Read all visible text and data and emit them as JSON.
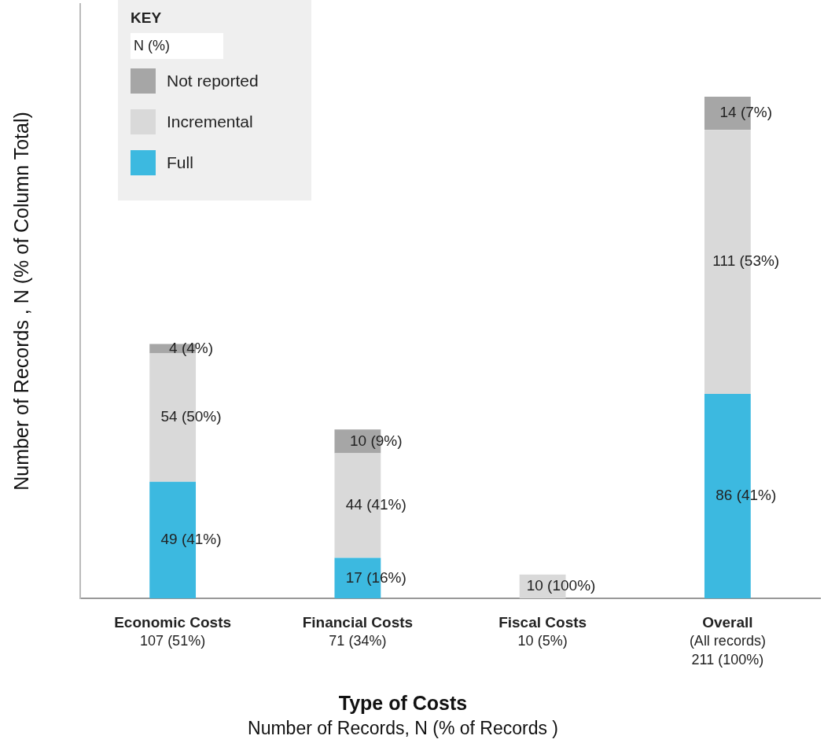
{
  "chart_data": {
    "type": "bar",
    "stacked": true,
    "xlabel": "Type of Costs\nNumber of Records, N (% of Records )",
    "ylabel": "Number of Records , N (% of Column Total)",
    "legend_title": "KEY",
    "legend": "top left",
    "grid": false,
    "tick_labels": "x",
    "annotations": [
      "N (%)"
    ],
    "categories": [
      "Economic Costs\n107 (51%)",
      "Financial Costs\n71 (34%)",
      "Fiscal Costs\n10 (5%)",
      "Overall\n(All records)\n211 (100%)"
    ],
    "series": [
      {
        "name": "Full",
        "color": "#3cb9e0",
        "values": [
          49,
          17,
          null,
          86
        ],
        "value_labels": [
          "49 (41%)",
          "17 (16%)",
          null,
          "86 (41%)"
        ]
      },
      {
        "name": "Incremental",
        "color": "#d9d9d9",
        "values": [
          54,
          44,
          10,
          111
        ],
        "value_labels": [
          "54 (50%)",
          "44 (41%)",
          "10 (100%)",
          "111 (53%)"
        ]
      },
      {
        "name": "Not reported",
        "color": "#a6a6a6",
        "values": [
          4,
          10,
          null,
          14
        ],
        "value_labels": [
          "4 (4%)",
          "10 (9%)",
          null,
          "14 (7%)"
        ]
      }
    ]
  }
}
